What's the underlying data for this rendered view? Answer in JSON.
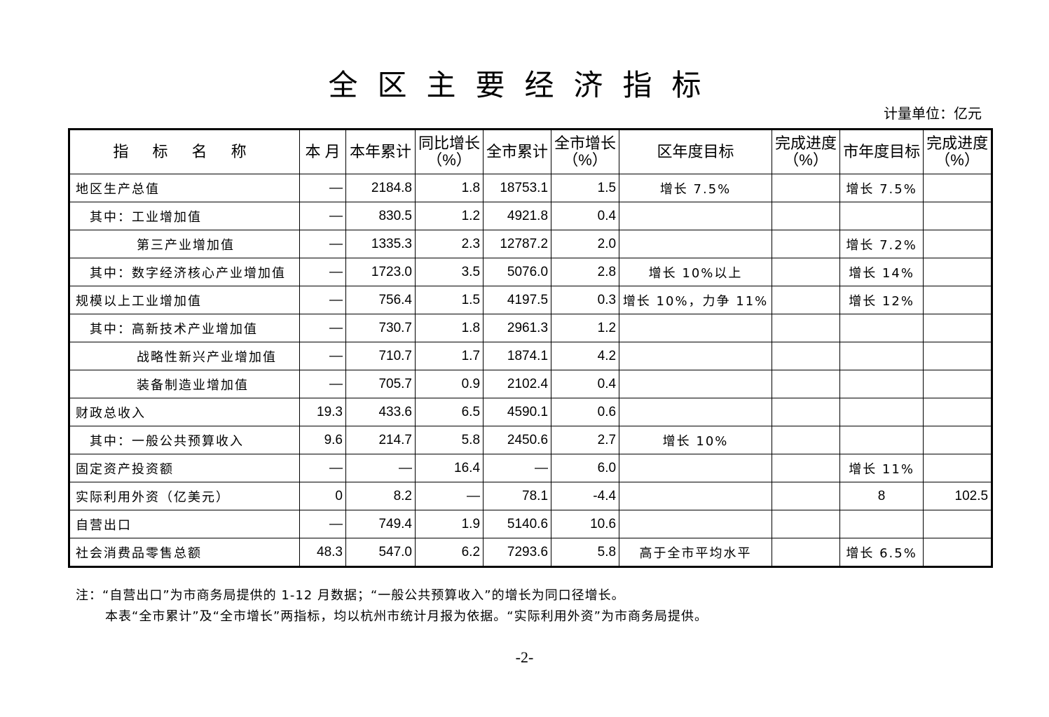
{
  "title": "全区主要经济指标",
  "unit": "计量单位：亿元",
  "headers": [
    "指 标 名 称",
    "本 月",
    "本年累计",
    "同比增长\n（%）",
    "全市累计",
    "全市增长\n（%）",
    "区年度目标",
    "完成进度\n（%）",
    "市年度目标",
    "完成进度\n（%）"
  ],
  "rows": [
    {
      "name": "地区生产总值",
      "level": 0,
      "cells": [
        "—",
        "2184.8",
        "1.8",
        "18753.1",
        "1.5",
        "增长 7.5%",
        "",
        "增长 7.5%",
        ""
      ]
    },
    {
      "name": "其中：工业增加值",
      "level": 1,
      "cells": [
        "—",
        "830.5",
        "1.2",
        "4921.8",
        "0.4",
        "",
        "",
        "",
        ""
      ]
    },
    {
      "name": "第三产业增加值",
      "level": 2,
      "cells": [
        "—",
        "1335.3",
        "2.3",
        "12787.2",
        "2.0",
        "",
        "",
        "增长 7.2%",
        ""
      ]
    },
    {
      "name": "其中：数字经济核心产业增加值",
      "level": 1,
      "cells": [
        "—",
        "1723.0",
        "3.5",
        "5076.0",
        "2.8",
        "增长 10%以上",
        "",
        "增长 14%",
        ""
      ]
    },
    {
      "name": "规模以上工业增加值",
      "level": 0,
      "cells": [
        "—",
        "756.4",
        "1.5",
        "4197.5",
        "0.3",
        "增长 10%，力争 11%",
        "",
        "增长 12%",
        ""
      ]
    },
    {
      "name": "其中：高新技术产业增加值",
      "level": 1,
      "cells": [
        "—",
        "730.7",
        "1.8",
        "2961.3",
        "1.2",
        "",
        "",
        "",
        ""
      ]
    },
    {
      "name": "战略性新兴产业增加值",
      "level": 2,
      "cells": [
        "—",
        "710.7",
        "1.7",
        "1874.1",
        "4.2",
        "",
        "",
        "",
        ""
      ]
    },
    {
      "name": "装备制造业增加值",
      "level": 2,
      "cells": [
        "—",
        "705.7",
        "0.9",
        "2102.4",
        "0.4",
        "",
        "",
        "",
        ""
      ]
    },
    {
      "name": "财政总收入",
      "level": 0,
      "cells": [
        "19.3",
        "433.6",
        "6.5",
        "4590.1",
        "0.6",
        "",
        "",
        "",
        ""
      ]
    },
    {
      "name": "其中：一般公共预算收入",
      "level": 1,
      "cells": [
        "9.6",
        "214.7",
        "5.8",
        "2450.6",
        "2.7",
        "增长 10%",
        "",
        "",
        ""
      ]
    },
    {
      "name": "固定资产投资额",
      "level": 0,
      "cells": [
        "—",
        "—",
        "16.4",
        "—",
        "6.0",
        "",
        "",
        "增长 11%",
        ""
      ]
    },
    {
      "name": "实际利用外资（亿美元）",
      "level": 0,
      "cells": [
        "0",
        "8.2",
        "—",
        "78.1",
        "-4.4",
        "",
        "",
        "8",
        "102.5"
      ]
    },
    {
      "name": "自营出口",
      "level": 0,
      "cells": [
        "—",
        "749.4",
        "1.9",
        "5140.6",
        "10.6",
        "",
        "",
        "",
        ""
      ]
    },
    {
      "name": "社会消费品零售总额",
      "level": 0,
      "cells": [
        "48.3",
        "547.0",
        "6.2",
        "7293.6",
        "5.8",
        "高于全市平均水平",
        "",
        "增长 6.5%",
        ""
      ]
    }
  ],
  "notes": [
    "注：“自营出口”为市商务局提供的 1-12 月数据；“一般公共预算收入”的增长为同口径增长。",
    "本表“全市累计”及“全市增长”两指标，均以杭州市统计月报为依据。“实际利用外资”为市商务局提供。"
  ],
  "page": "-2-"
}
